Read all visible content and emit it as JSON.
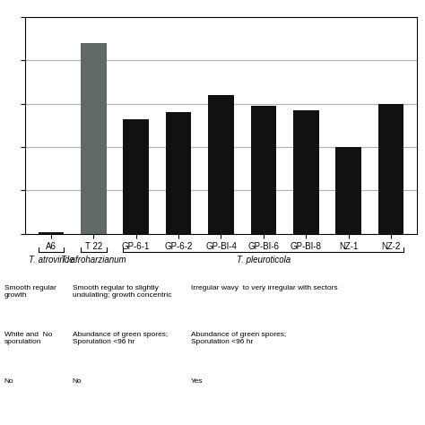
{
  "chart_data": {
    "type": "bar",
    "categories": [
      "A6",
      "T 22",
      "GP-6-1",
      "GP-6-2",
      "GP-BI-4",
      "GP-BI-6",
      "GP-BI-8",
      "NZ-1",
      "NZ-2"
    ],
    "values": [
      0.05,
      8.8,
      5.3,
      5.6,
      6.4,
      5.9,
      5.7,
      4.0,
      6.0
    ],
    "colors": [
      "#111111",
      "#606868",
      "#111111",
      "#111111",
      "#111111",
      "#111111",
      "#111111",
      "#111111",
      "#111111"
    ],
    "ylim": [
      0,
      10
    ],
    "yticks": [
      0,
      2,
      4,
      6,
      8,
      10
    ],
    "grid": true,
    "tick_labels": "x",
    "groups": [
      {
        "label": "T. atroviride",
        "categories": [
          "A6"
        ],
        "notes": [
          "Smooth regular\ngrowth",
          "White and  No\nsporulation",
          "No"
        ]
      },
      {
        "label": "T. afroharzianum",
        "categories": [
          "T 22"
        ],
        "notes": [
          "Smooth regular to slightly\nundulating; growth concentric",
          "Abundance of green spores;\nSporulation <96 hr",
          "No"
        ]
      },
      {
        "label": "T. pleuroticola",
        "categories": [
          "GP-6-1",
          "GP-6-2",
          "GP-BI-4",
          "GP-BI-6",
          "GP-BI-8",
          "NZ-1",
          "NZ-2"
        ],
        "notes": [
          "Irregular wavy  to very irregular with sectors",
          "Abundance of green spores;\nSporulation <96 hr",
          "Yes"
        ]
      }
    ]
  }
}
